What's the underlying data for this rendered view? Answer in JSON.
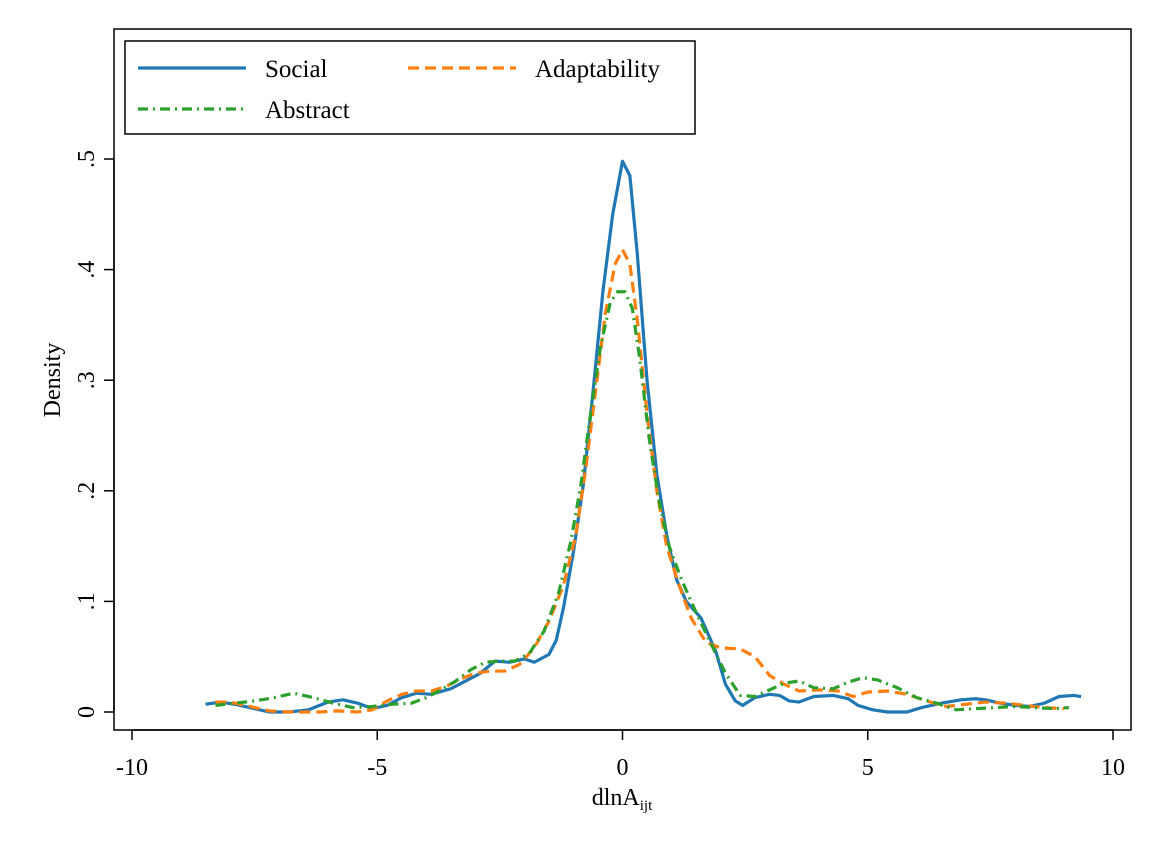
{
  "chart_data": {
    "type": "line",
    "title": "",
    "xlabel": "dlnA",
    "xlabel_subscript": "ijt",
    "ylabel": "Density",
    "xlim": [
      -10,
      10
    ],
    "ylim": [
      0,
      0.6
    ],
    "xticks": [
      -10,
      -5,
      0,
      5,
      10
    ],
    "xtick_labels": [
      "-10",
      "-5",
      "0",
      "5",
      "10"
    ],
    "yticks": [
      0,
      0.1,
      0.2,
      0.3,
      0.4,
      0.5
    ],
    "ytick_labels": [
      "0",
      ".1",
      ".2",
      ".3",
      ".4",
      ".5"
    ],
    "grid": false,
    "legend_position": "top-left",
    "series": [
      {
        "name": "Social",
        "color": "#1f77b4",
        "style": "solid",
        "points": [
          [
            -8.5,
            0.007
          ],
          [
            -8.2,
            0.009
          ],
          [
            -7.9,
            0.007
          ],
          [
            -7.5,
            0.003
          ],
          [
            -7.2,
            0.0
          ],
          [
            -6.8,
            0.0
          ],
          [
            -6.4,
            0.002
          ],
          [
            -6.0,
            0.009
          ],
          [
            -5.7,
            0.011
          ],
          [
            -5.4,
            0.008
          ],
          [
            -5.1,
            0.003
          ],
          [
            -4.8,
            0.006
          ],
          [
            -4.5,
            0.013
          ],
          [
            -4.2,
            0.017
          ],
          [
            -3.9,
            0.016
          ],
          [
            -3.5,
            0.021
          ],
          [
            -3.2,
            0.028
          ],
          [
            -2.9,
            0.035
          ],
          [
            -2.6,
            0.046
          ],
          [
            -2.3,
            0.045
          ],
          [
            -2.0,
            0.048
          ],
          [
            -1.8,
            0.045
          ],
          [
            -1.5,
            0.052
          ],
          [
            -1.35,
            0.065
          ],
          [
            -1.2,
            0.095
          ],
          [
            -1.0,
            0.145
          ],
          [
            -0.8,
            0.205
          ],
          [
            -0.6,
            0.29
          ],
          [
            -0.4,
            0.38
          ],
          [
            -0.2,
            0.45
          ],
          [
            0.0,
            0.498
          ],
          [
            0.15,
            0.485
          ],
          [
            0.3,
            0.415
          ],
          [
            0.5,
            0.3
          ],
          [
            0.7,
            0.215
          ],
          [
            0.9,
            0.16
          ],
          [
            1.1,
            0.12
          ],
          [
            1.3,
            0.1
          ],
          [
            1.6,
            0.085
          ],
          [
            1.9,
            0.055
          ],
          [
            2.1,
            0.025
          ],
          [
            2.3,
            0.01
          ],
          [
            2.45,
            0.006
          ],
          [
            2.7,
            0.013
          ],
          [
            3.0,
            0.016
          ],
          [
            3.2,
            0.015
          ],
          [
            3.4,
            0.01
          ],
          [
            3.6,
            0.009
          ],
          [
            3.9,
            0.014
          ],
          [
            4.3,
            0.015
          ],
          [
            4.6,
            0.012
          ],
          [
            4.8,
            0.006
          ],
          [
            5.1,
            0.002
          ],
          [
            5.4,
            0.0
          ],
          [
            5.8,
            0.0
          ],
          [
            6.1,
            0.004
          ],
          [
            6.5,
            0.008
          ],
          [
            6.9,
            0.011
          ],
          [
            7.2,
            0.012
          ],
          [
            7.4,
            0.011
          ],
          [
            7.7,
            0.008
          ],
          [
            8.0,
            0.006
          ],
          [
            8.3,
            0.005
          ],
          [
            8.6,
            0.008
          ],
          [
            8.9,
            0.014
          ],
          [
            9.2,
            0.015
          ],
          [
            9.35,
            0.014
          ]
        ]
      },
      {
        "name": "Adaptability",
        "color": "#ff7f0e",
        "style": "dashed",
        "points": [
          [
            -8.3,
            0.009
          ],
          [
            -8.0,
            0.009
          ],
          [
            -7.6,
            0.005
          ],
          [
            -7.2,
            0.001
          ],
          [
            -6.8,
            0.0
          ],
          [
            -6.2,
            0.0
          ],
          [
            -5.8,
            0.001
          ],
          [
            -5.4,
            0.0
          ],
          [
            -5.1,
            0.002
          ],
          [
            -4.8,
            0.01
          ],
          [
            -4.5,
            0.016
          ],
          [
            -4.2,
            0.019
          ],
          [
            -3.9,
            0.019
          ],
          [
            -3.6,
            0.023
          ],
          [
            -3.3,
            0.03
          ],
          [
            -3.0,
            0.035
          ],
          [
            -2.7,
            0.037
          ],
          [
            -2.4,
            0.037
          ],
          [
            -2.1,
            0.043
          ],
          [
            -1.8,
            0.058
          ],
          [
            -1.5,
            0.082
          ],
          [
            -1.2,
            0.115
          ],
          [
            -0.95,
            0.16
          ],
          [
            -0.75,
            0.22
          ],
          [
            -0.55,
            0.29
          ],
          [
            -0.35,
            0.36
          ],
          [
            -0.15,
            0.405
          ],
          [
            0.0,
            0.418
          ],
          [
            0.15,
            0.405
          ],
          [
            0.3,
            0.355
          ],
          [
            0.5,
            0.27
          ],
          [
            0.7,
            0.2
          ],
          [
            0.9,
            0.15
          ],
          [
            1.15,
            0.115
          ],
          [
            1.4,
            0.085
          ],
          [
            1.7,
            0.063
          ],
          [
            2.0,
            0.058
          ],
          [
            2.4,
            0.057
          ],
          [
            2.7,
            0.05
          ],
          [
            3.0,
            0.033
          ],
          [
            3.3,
            0.025
          ],
          [
            3.6,
            0.019
          ],
          [
            4.0,
            0.02
          ],
          [
            4.4,
            0.019
          ],
          [
            4.7,
            0.014
          ],
          [
            5.0,
            0.018
          ],
          [
            5.4,
            0.019
          ],
          [
            5.8,
            0.016
          ],
          [
            6.2,
            0.01
          ],
          [
            6.6,
            0.005
          ],
          [
            7.0,
            0.007
          ],
          [
            7.4,
            0.009
          ],
          [
            7.8,
            0.008
          ],
          [
            8.2,
            0.006
          ],
          [
            8.6,
            0.004
          ],
          [
            9.0,
            0.003
          ]
        ]
      },
      {
        "name": "Abstract",
        "color": "#2ca02c",
        "style": "dashdot",
        "points": [
          [
            -8.3,
            0.006
          ],
          [
            -7.9,
            0.008
          ],
          [
            -7.5,
            0.01
          ],
          [
            -7.1,
            0.013
          ],
          [
            -6.7,
            0.017
          ],
          [
            -6.3,
            0.013
          ],
          [
            -5.9,
            0.008
          ],
          [
            -5.5,
            0.004
          ],
          [
            -5.1,
            0.005
          ],
          [
            -4.7,
            0.007
          ],
          [
            -4.3,
            0.008
          ],
          [
            -4.0,
            0.013
          ],
          [
            -3.7,
            0.02
          ],
          [
            -3.4,
            0.028
          ],
          [
            -3.1,
            0.038
          ],
          [
            -2.8,
            0.045
          ],
          [
            -2.5,
            0.046
          ],
          [
            -2.2,
            0.046
          ],
          [
            -1.9,
            0.053
          ],
          [
            -1.6,
            0.073
          ],
          [
            -1.3,
            0.108
          ],
          [
            -1.05,
            0.155
          ],
          [
            -0.85,
            0.205
          ],
          [
            -0.65,
            0.27
          ],
          [
            -0.45,
            0.33
          ],
          [
            -0.25,
            0.37
          ],
          [
            -0.1,
            0.38
          ],
          [
            0.05,
            0.38
          ],
          [
            0.2,
            0.365
          ],
          [
            0.35,
            0.32
          ],
          [
            0.55,
            0.245
          ],
          [
            0.75,
            0.19
          ],
          [
            0.95,
            0.15
          ],
          [
            1.2,
            0.12
          ],
          [
            1.5,
            0.09
          ],
          [
            1.8,
            0.062
          ],
          [
            2.1,
            0.035
          ],
          [
            2.4,
            0.015
          ],
          [
            2.7,
            0.014
          ],
          [
            3.0,
            0.02
          ],
          [
            3.3,
            0.026
          ],
          [
            3.6,
            0.028
          ],
          [
            3.9,
            0.022
          ],
          [
            4.3,
            0.021
          ],
          [
            4.6,
            0.027
          ],
          [
            4.9,
            0.031
          ],
          [
            5.2,
            0.029
          ],
          [
            5.6,
            0.022
          ],
          [
            6.0,
            0.013
          ],
          [
            6.4,
            0.008
          ],
          [
            6.8,
            0.002
          ],
          [
            7.2,
            0.003
          ],
          [
            7.6,
            0.004
          ],
          [
            8.0,
            0.005
          ],
          [
            8.4,
            0.004
          ],
          [
            8.8,
            0.003
          ],
          [
            9.1,
            0.004
          ]
        ]
      }
    ]
  }
}
